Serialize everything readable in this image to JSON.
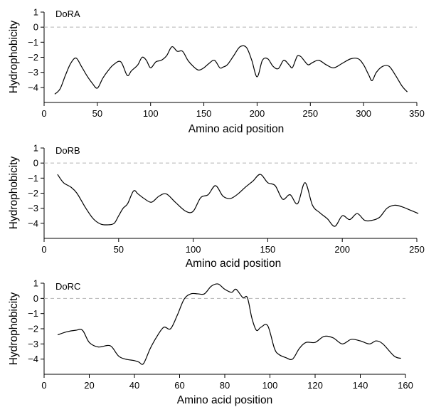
{
  "chart_data": [
    {
      "type": "line",
      "panel_label": "DoRA",
      "xlabel": "Amino acid position",
      "ylabel": "Hydrophobicity",
      "xlim": [
        0,
        350
      ],
      "ylim": [
        -5,
        1
      ],
      "xticks": [
        0,
        50,
        100,
        150,
        200,
        250,
        300,
        350
      ],
      "yticks": [
        1,
        0,
        -1,
        -2,
        -3,
        -4
      ],
      "reference_line_y": 0,
      "series": [
        {
          "name": "DoRA",
          "x": [
            10,
            15,
            20,
            25,
            30,
            35,
            40,
            45,
            50,
            55,
            60,
            65,
            72,
            78,
            82,
            88,
            92,
            96,
            100,
            105,
            110,
            115,
            120,
            125,
            130,
            135,
            140,
            145,
            150,
            155,
            160,
            165,
            168,
            172,
            178,
            184,
            190,
            195,
            200,
            205,
            210,
            215,
            220,
            225,
            230,
            233,
            236,
            238,
            241,
            244,
            248,
            252,
            258,
            265,
            272,
            280,
            288,
            295,
            300,
            305,
            308,
            312,
            318,
            324,
            330,
            336,
            341
          ],
          "y": [
            -4.45,
            -4.1,
            -3.2,
            -2.4,
            -2.05,
            -2.6,
            -3.2,
            -3.7,
            -4.05,
            -3.4,
            -2.9,
            -2.5,
            -2.3,
            -3.2,
            -2.9,
            -2.5,
            -2.0,
            -2.2,
            -2.7,
            -2.3,
            -2.2,
            -1.9,
            -1.3,
            -1.6,
            -1.6,
            -2.2,
            -2.6,
            -2.85,
            -2.7,
            -2.4,
            -2.2,
            -2.7,
            -2.65,
            -2.5,
            -1.9,
            -1.3,
            -1.35,
            -2.2,
            -3.3,
            -2.2,
            -2.1,
            -2.6,
            -2.75,
            -2.2,
            -2.5,
            -2.7,
            -2.2,
            -1.9,
            -1.95,
            -2.2,
            -2.5,
            -2.35,
            -2.2,
            -2.5,
            -2.7,
            -2.4,
            -2.1,
            -2.1,
            -2.5,
            -3.2,
            -3.55,
            -3.0,
            -2.6,
            -2.6,
            -3.2,
            -3.9,
            -4.3
          ]
        }
      ]
    },
    {
      "type": "line",
      "panel_label": "DoRB",
      "xlabel": "Amino acid position",
      "ylabel": "Hydrophobicity",
      "xlim": [
        0,
        250
      ],
      "ylim": [
        -5,
        1
      ],
      "xticks": [
        0,
        50,
        100,
        150,
        200,
        250
      ],
      "yticks": [
        1,
        0,
        -1,
        -2,
        -3,
        -4
      ],
      "reference_line_y": 0,
      "series": [
        {
          "name": "DoRB",
          "x": [
            9,
            13,
            18,
            22,
            28,
            33,
            38,
            43,
            47,
            50,
            53,
            56,
            60,
            63,
            67,
            72,
            77,
            82,
            88,
            95,
            100,
            105,
            110,
            115,
            120,
            125,
            130,
            135,
            140,
            145,
            150,
            155,
            160,
            165,
            170,
            175,
            180,
            185,
            190,
            195,
            200,
            205,
            210,
            215,
            220,
            225,
            230,
            235,
            240,
            245,
            251
          ],
          "y": [
            -0.75,
            -1.3,
            -1.6,
            -2.0,
            -3.0,
            -3.7,
            -4.05,
            -4.1,
            -4.0,
            -3.5,
            -3.0,
            -2.7,
            -1.85,
            -2.05,
            -2.35,
            -2.6,
            -2.2,
            -2.05,
            -2.6,
            -3.2,
            -3.2,
            -2.3,
            -2.1,
            -1.5,
            -2.2,
            -2.35,
            -2.05,
            -1.6,
            -1.2,
            -0.75,
            -1.3,
            -1.5,
            -2.4,
            -2.1,
            -2.7,
            -1.3,
            -2.8,
            -3.3,
            -3.7,
            -4.2,
            -3.5,
            -3.75,
            -3.35,
            -3.8,
            -3.8,
            -3.6,
            -3.0,
            -2.8,
            -2.9,
            -3.1,
            -3.35
          ]
        }
      ]
    },
    {
      "type": "line",
      "panel_label": "DoRC",
      "xlabel": "Amino acid position",
      "ylabel": "Hydrophobicity",
      "xlim": [
        0,
        160
      ],
      "ylim": [
        -5,
        1
      ],
      "xticks": [
        0,
        20,
        40,
        60,
        80,
        100,
        120,
        140,
        160
      ],
      "yticks": [
        1,
        0,
        -1,
        -2,
        -3,
        -4
      ],
      "reference_line_y": 0,
      "series": [
        {
          "name": "DoRC",
          "x": [
            6,
            10,
            14,
            17,
            20,
            24,
            28,
            30,
            33,
            36,
            40,
            42,
            44,
            47,
            50,
            53,
            56,
            59,
            62,
            65,
            68,
            71,
            74,
            77,
            80,
            83,
            85,
            88,
            90,
            92,
            94,
            96,
            99,
            102,
            104,
            107,
            110,
            113,
            116,
            120,
            124,
            128,
            132,
            136,
            140,
            144,
            147,
            150,
            155,
            158
          ],
          "y": [
            -2.4,
            -2.2,
            -2.1,
            -2.1,
            -2.9,
            -3.2,
            -3.1,
            -3.2,
            -3.8,
            -4.0,
            -4.1,
            -4.2,
            -4.3,
            -3.3,
            -2.5,
            -1.9,
            -2.0,
            -1.1,
            -0.05,
            0.3,
            0.3,
            0.3,
            0.8,
            0.95,
            0.6,
            0.4,
            0.6,
            0.05,
            0.05,
            -1.3,
            -2.1,
            -1.9,
            -1.8,
            -3.3,
            -3.7,
            -3.9,
            -4.0,
            -3.3,
            -2.9,
            -2.9,
            -2.5,
            -2.6,
            -3.0,
            -2.7,
            -2.8,
            -3.0,
            -2.8,
            -3.0,
            -3.8,
            -3.95
          ]
        }
      ]
    }
  ]
}
